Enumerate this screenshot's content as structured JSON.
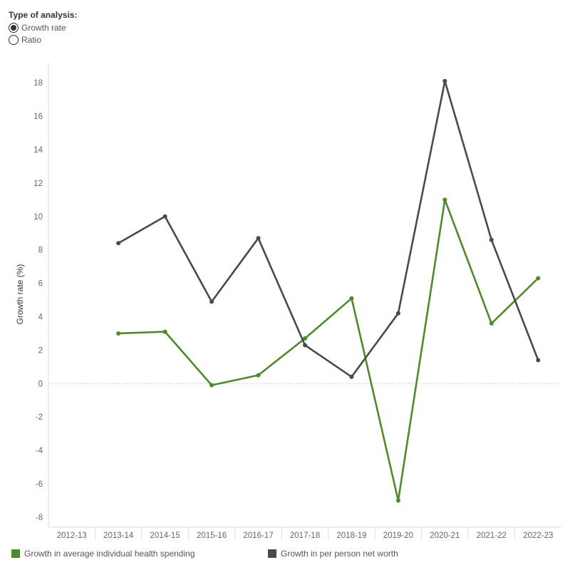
{
  "filter": {
    "title": "Type of analysis:",
    "options": [
      {
        "label": "Growth rate",
        "selected": true
      },
      {
        "label": "Ratio",
        "selected": false
      }
    ]
  },
  "colors": {
    "health": "#4e8a2a",
    "networth": "#4a4a4a",
    "zero_line": "#bbbbbb",
    "axis": "#dddddd"
  },
  "chart_data": {
    "type": "line",
    "ylabel": "Growth rate (%)",
    "xlabel": "",
    "ylim": [
      -8.6,
      19.2
    ],
    "yticks": [
      18,
      16,
      14,
      12,
      10,
      8,
      6,
      4,
      2,
      0,
      -2,
      -4,
      -6,
      -8
    ],
    "categories": [
      "2012-13",
      "2013-14",
      "2014-15",
      "2015-16",
      "2016-17",
      "2017-18",
      "2018-19",
      "2019-20",
      "2020-21",
      "2021-22",
      "2022-23"
    ],
    "series": [
      {
        "name": "Growth in average individual health spending",
        "color": "#4e8a2a",
        "values": [
          null,
          3.0,
          3.1,
          -0.1,
          0.5,
          2.7,
          5.1,
          -7.0,
          11.0,
          3.6,
          6.3
        ]
      },
      {
        "name": "Growth in per person net worth",
        "color": "#4a4a4a",
        "values": [
          null,
          8.4,
          10.0,
          4.9,
          8.7,
          2.3,
          0.4,
          4.2,
          18.1,
          8.6,
          1.4
        ]
      }
    ],
    "legend_position": "bottom",
    "grid": false
  }
}
